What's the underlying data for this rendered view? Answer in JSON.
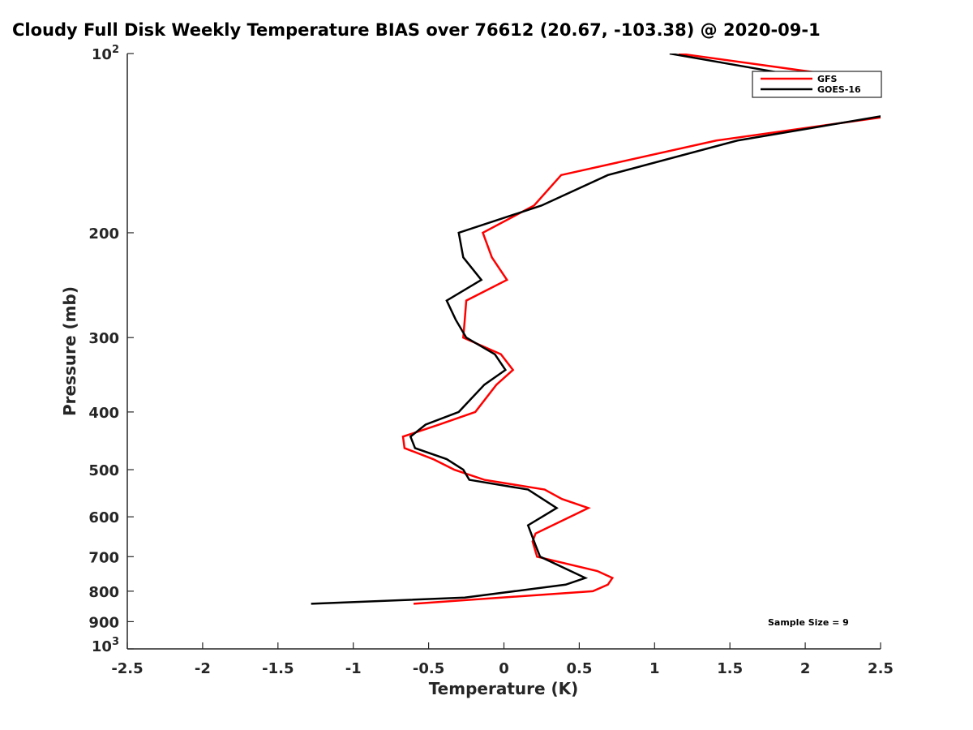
{
  "chart_data": {
    "type": "line",
    "title": "Cloudy Full Disk Weekly Temperature BIAS over 76612 (20.67, -103.38) @ 2020-09-1",
    "xlabel": "Temperature (K)",
    "ylabel": "Pressure (mb)",
    "xlim": [
      -2.5,
      2.5
    ],
    "ylim": [
      1000,
      100
    ],
    "yscale": "log",
    "x_ticks": [
      "-2.5",
      "-2",
      "-1.5",
      "-1",
      "-0.5",
      "0",
      "0.5",
      "1",
      "1.5",
      "2",
      "2.5"
    ],
    "y_ticks": [
      {
        "value": 100,
        "base": "10",
        "exp": "2"
      },
      {
        "value": 200,
        "label": "200"
      },
      {
        "value": 300,
        "label": "300"
      },
      {
        "value": 400,
        "label": "400"
      },
      {
        "value": 500,
        "label": "500"
      },
      {
        "value": 600,
        "label": "600"
      },
      {
        "value": 700,
        "label": "700"
      },
      {
        "value": 800,
        "label": "800"
      },
      {
        "value": 900,
        "label": "900"
      },
      {
        "value": 1000,
        "base": "10",
        "exp": "3"
      }
    ],
    "legend_position": "top-right",
    "annotation": "Sample Size = 9",
    "series": [
      {
        "name": "GFS",
        "color": "#ff0000",
        "points": [
          [
            1.16,
            100
          ],
          [
            2.9,
            115
          ],
          [
            2.6,
            127
          ],
          [
            1.41,
            140
          ],
          [
            0.38,
            160
          ],
          [
            0.2,
            180
          ],
          [
            -0.14,
            200
          ],
          [
            -0.08,
            220
          ],
          [
            0.02,
            240
          ],
          [
            -0.25,
            260
          ],
          [
            -0.26,
            280
          ],
          [
            -0.27,
            300
          ],
          [
            -0.02,
            320
          ],
          [
            0.06,
            340
          ],
          [
            -0.05,
            360
          ],
          [
            -0.19,
            400
          ],
          [
            -0.43,
            420
          ],
          [
            -0.67,
            440
          ],
          [
            -0.66,
            460
          ],
          [
            -0.47,
            480
          ],
          [
            -0.33,
            500
          ],
          [
            -0.13,
            520
          ],
          [
            0.27,
            540
          ],
          [
            0.385,
            560
          ],
          [
            0.56,
            580
          ],
          [
            0.44,
            600
          ],
          [
            0.21,
            640
          ],
          [
            0.19,
            660
          ],
          [
            0.22,
            700
          ],
          [
            0.62,
            740
          ],
          [
            0.72,
            760
          ],
          [
            0.69,
            780
          ],
          [
            0.59,
            800
          ],
          [
            -0.6,
            840
          ]
        ]
      },
      {
        "name": "GOES-16",
        "color": "#000000",
        "points": [
          [
            1.1,
            100
          ],
          [
            2.9,
            120
          ],
          [
            2.7,
            125
          ],
          [
            1.55,
            140
          ],
          [
            0.69,
            160
          ],
          [
            0.25,
            180
          ],
          [
            -0.3,
            200
          ],
          [
            -0.27,
            220
          ],
          [
            -0.15,
            240
          ],
          [
            -0.38,
            260
          ],
          [
            -0.32,
            280
          ],
          [
            -0.25,
            300
          ],
          [
            -0.06,
            320
          ],
          [
            0.01,
            340
          ],
          [
            -0.13,
            360
          ],
          [
            -0.3,
            400
          ],
          [
            -0.52,
            420
          ],
          [
            -0.62,
            440
          ],
          [
            -0.59,
            460
          ],
          [
            -0.38,
            480
          ],
          [
            -0.27,
            500
          ],
          [
            -0.23,
            520
          ],
          [
            0.16,
            540
          ],
          [
            0.35,
            580
          ],
          [
            0.16,
            620
          ],
          [
            0.21,
            670
          ],
          [
            0.24,
            700
          ],
          [
            0.54,
            760
          ],
          [
            0.41,
            780
          ],
          [
            -0.26,
            820
          ],
          [
            -1.28,
            840
          ]
        ]
      }
    ]
  }
}
